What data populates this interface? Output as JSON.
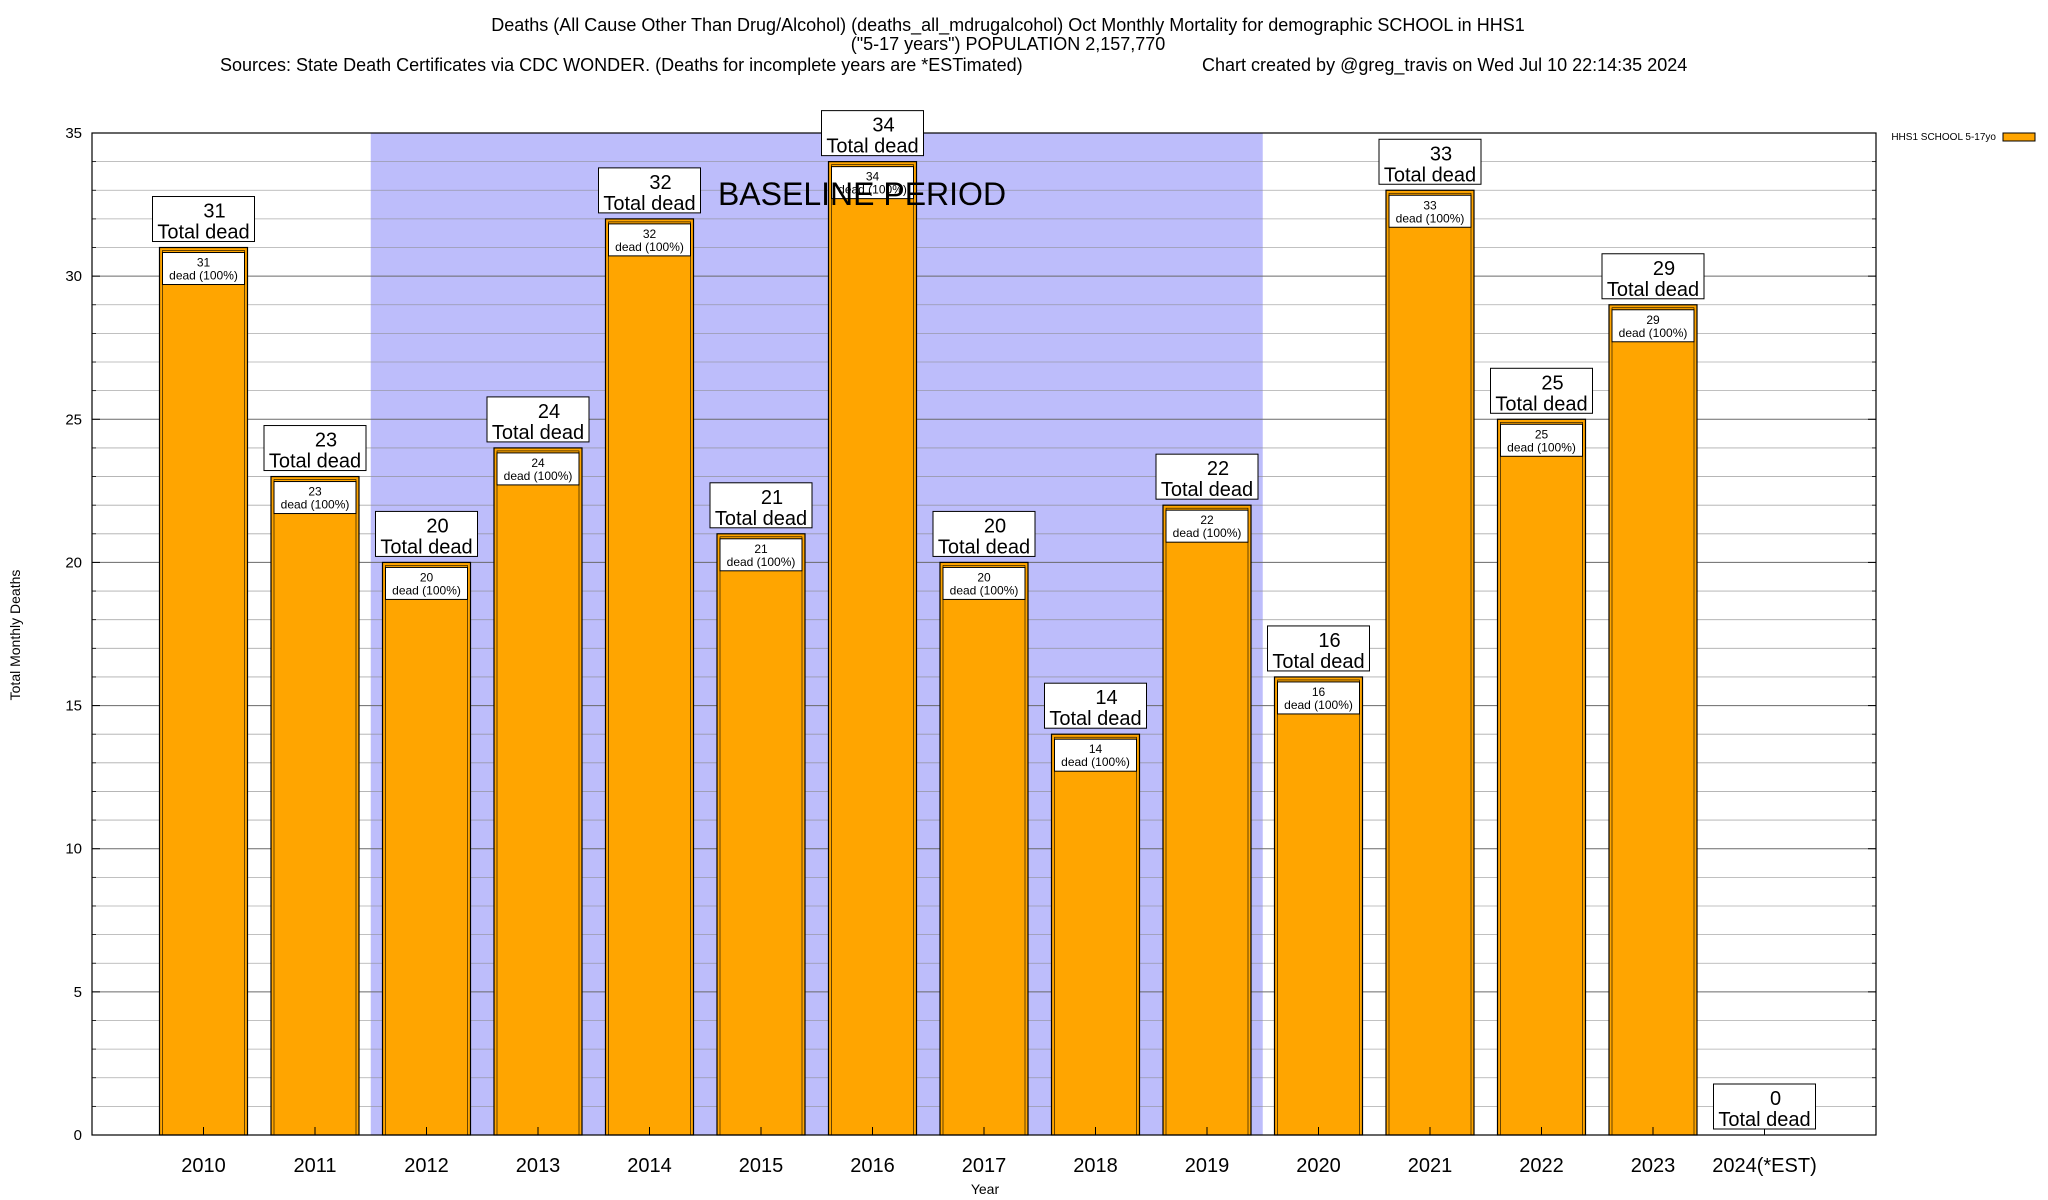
{
  "chart_data": {
    "type": "bar",
    "title_line1": "Deaths (All Cause Other Than Drug/Alcohol) (deaths_all_mdrugalcohol) Oct Monthly Mortality for demographic SCHOOL in HHS1",
    "title_line2": "(\"5-17 years\") POPULATION 2,157,770",
    "sources": "Sources: State Death Certificates via CDC WONDER. (Deaths for incomplete years are *ESTimated)",
    "credit": "Chart created by @greg_travis on Wed Jul 10 22:14:35 2024",
    "xlabel": "Year",
    "ylabel": "Total Monthly Deaths",
    "ylim": [
      0,
      35
    ],
    "yticks": [
      0,
      5,
      10,
      15,
      20,
      25,
      30,
      35
    ],
    "minor_grid_step": 1,
    "categories": [
      "2010",
      "2011",
      "2012",
      "2013",
      "2014",
      "2015",
      "2016",
      "2017",
      "2018",
      "2019",
      "2020",
      "2021",
      "2022",
      "2023",
      "2024(*EST)"
    ],
    "series": [
      {
        "name": "HHS1 SCHOOL 5-17yo",
        "color": "#FFA500",
        "values": [
          31,
          23,
          20,
          24,
          32,
          21,
          34,
          20,
          14,
          22,
          16,
          33,
          25,
          29,
          0
        ]
      }
    ],
    "top_label_suffix": "Total dead",
    "inner_label_suffix": "dead (100%)",
    "baseline": {
      "label": "BASELINE PERIOD",
      "start": "2012",
      "end": "2019",
      "color": "#BDBDFB"
    },
    "legend_position": "top-right",
    "grid": true
  }
}
